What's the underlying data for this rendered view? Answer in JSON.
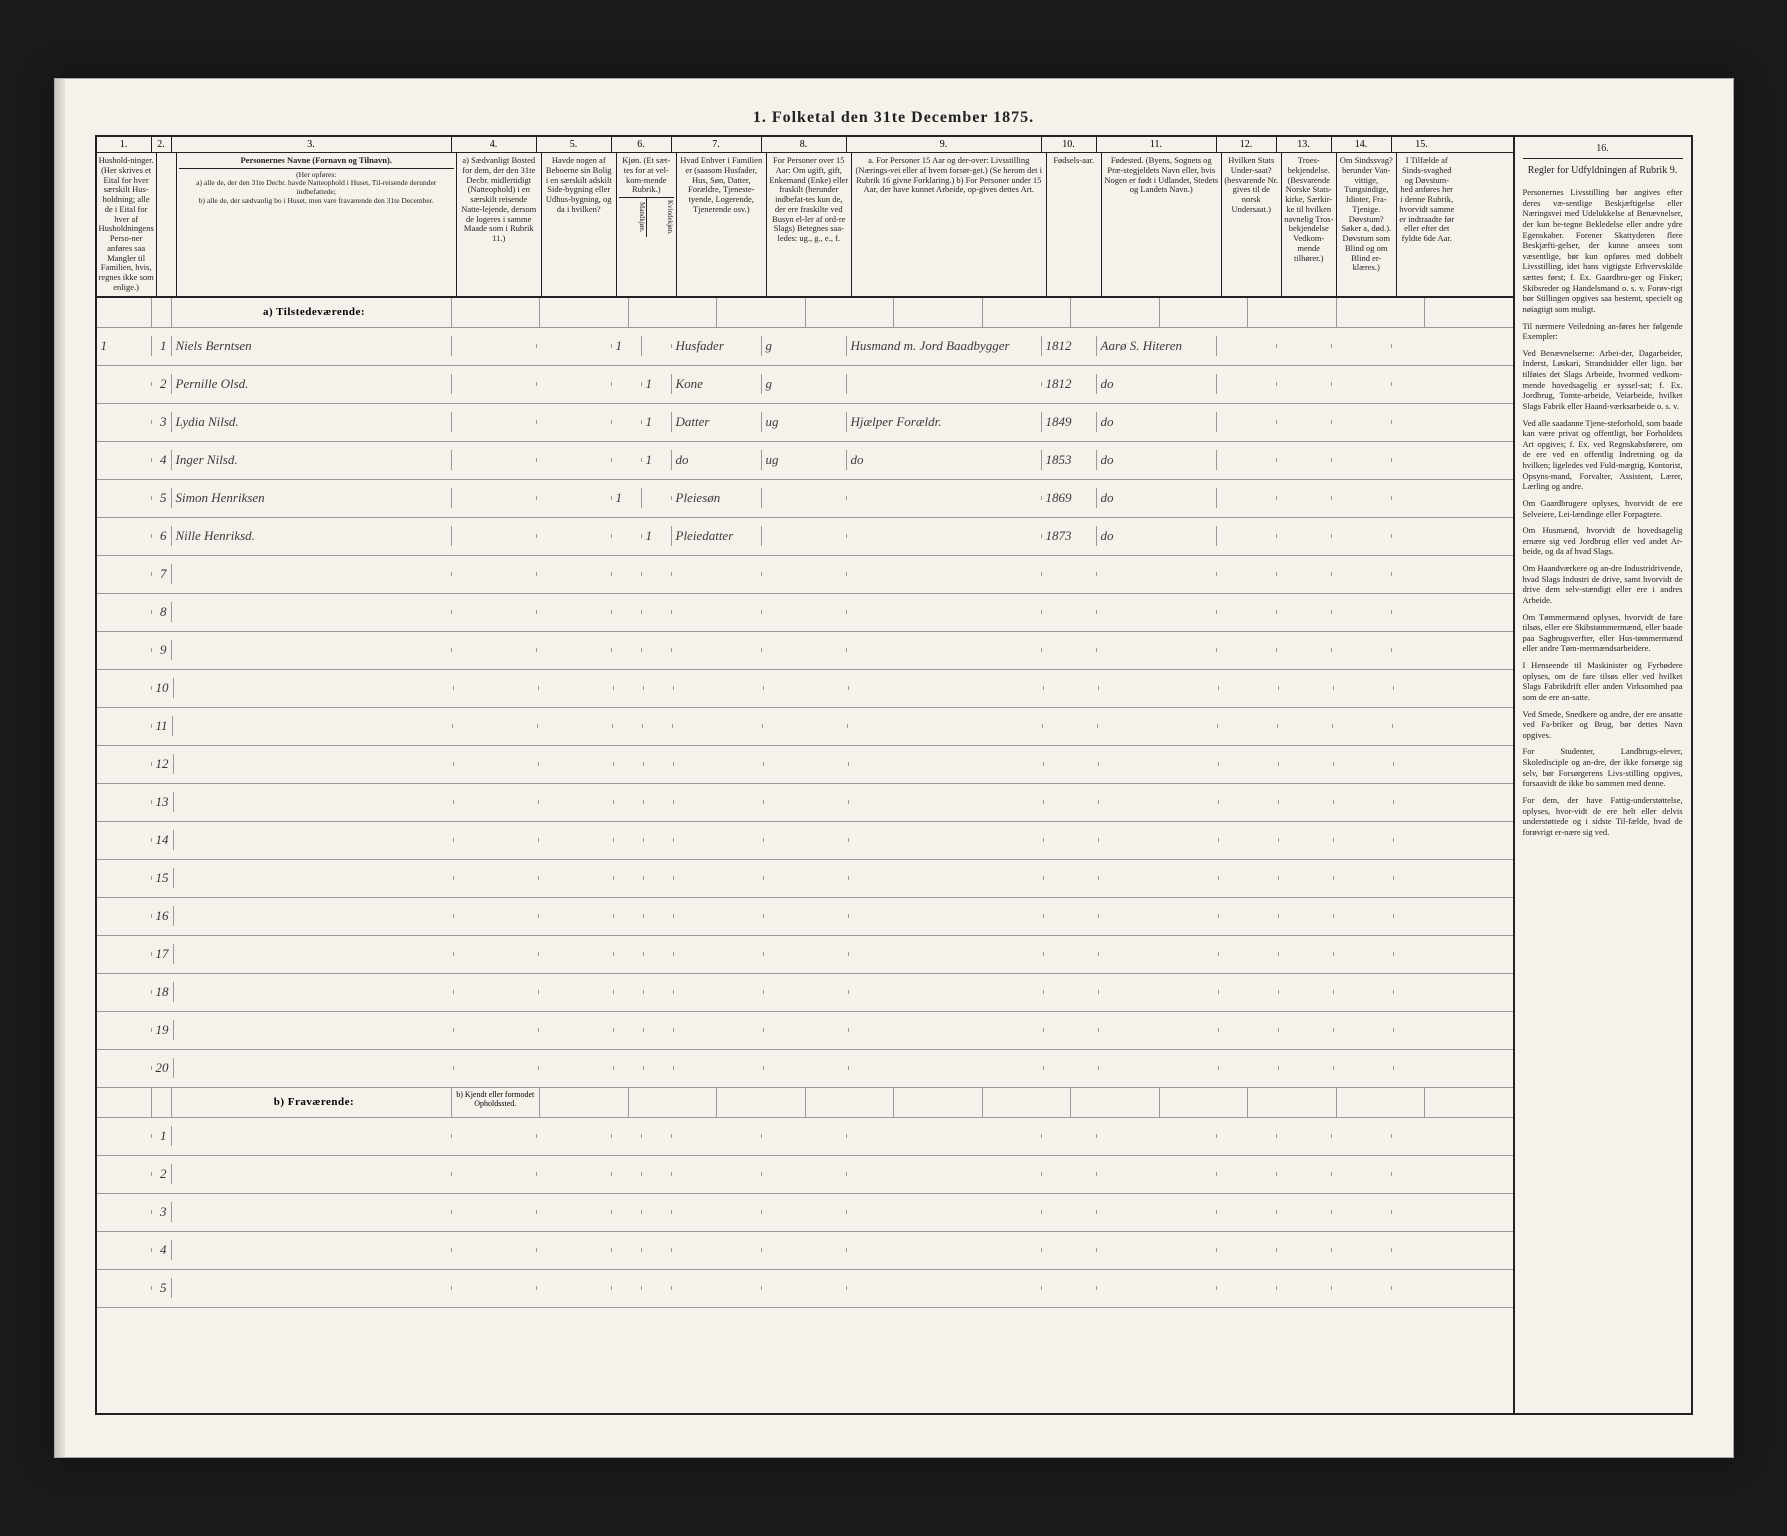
{
  "title": "1. Folketal den 31te December 1875.",
  "columns": {
    "nums": [
      "1.",
      "2.",
      "3.",
      "4.",
      "5.",
      "6.",
      "7.",
      "8.",
      "9.",
      "10.",
      "11.",
      "12.",
      "13.",
      "14.",
      "15.",
      "16."
    ],
    "h1": "Hushold-ninger. (Her skrives et Eital for hver særskilt Hus-holdning; alle de i Eital for hver af Husholdningens Perso-ner anføres saa Mangler til Familien, hvis, regnes ikke som enlige.)",
    "h2": "",
    "h3_title": "Personernes Navne (Fornavn og Tilnavn).",
    "h3_sub": "(Her opføres:\na) alle de, der den 31te Decbr. havde Natteophold i Huset, Til-reisende derunder indbefattede;\nb) alle de, der sædvanlig bo i Huset, men vare fraværende den 31te December.",
    "h4": "a) Sædvanligt Bosted for dem, der den 31te Decbr. midlertidigt (Natteophold) i en særskilt reisende Natte-lejende, dersom de logeres i samme Maade som i Rubrik 11.)",
    "h5": "Havde nogen af Beboerne sin Bolig i en særskilt adskilt Side-bygning eller Udhus-bygning, og da i hvilken?",
    "h6": "Kjøn. (Et sæt-tes for at vel-kom-mende Rubrik.)",
    "h6a": "Mandkjøn.",
    "h6b": "Kvindekjøn.",
    "h7": "Hvad Enhver i Familien er (saasom Husfader, Hus, Søn, Datter, Forældre, Tjeneste-tyende, Logerende, Tjenerende osv.)",
    "h8": "For Personer over 15 Aar: Om ugift, gift, Enkemand (Enke) eller fraskilt (herunder indbefat-tes kun de, der ere fraskilte ved Busyn el-ler af ord-re Slags) Betegnes saa-ledes: ug., g., e., f.",
    "h9": "a. For Personer 15 Aar og der-over: Livsstilling (Nærings-vei eller af hvem forsør-get.) (Se herom det i Rubrik 16 givne Forklaring.) b) For Personer under 15 Aar, der have kunnet Arbeide, op-gives dettes Art.",
    "h10": "Fødsels-aar.",
    "h11": "Fødested. (Byens, Sognets og Præ-stegjeldets Navn eller, hvis Nogen er født i Udlandet, Stedets og Landets Navn.)",
    "h12": "Hvilken Stats Under-saat? (besvarende Nr. gives til de norsk Undersaat.)",
    "h13": "Troes-bekjendelse. (Besvarende Norske Stats-kirke, Særkir-ke til hvilken navnelig Tros-bekjendelse Vedkom-mende tilhører.)",
    "h14": "Om Sindssvag? berunder Van-vittige, Tungsindige, Idioter, Fra-Tjenige. Døvstum? Søker a, død.). Døvstum som Blind og om Blind er-klæres.)",
    "h15": "I Tilfælde af Sinds-svaghed og Døvstum-hed anføres her i denne Rubrik, hvorvidt samme er indtraadte før eller efter det fyldte 6de Aar.",
    "h16_title": "Regler for Udfyldningen af Rubrik 9."
  },
  "section_a": "a) Tilstedeværende:",
  "section_b": "b) Fraværende:",
  "section_b_col4": "b) Kjendt eller formodet Opholdssted.",
  "rows": [
    {
      "n": "1",
      "hh": "1",
      "name": "Niels Berntsen",
      "m": "1",
      "k": "",
      "rel": "Husfader",
      "civ": "g",
      "occ": "Husmand m. Jord Baadbygger",
      "yr": "1812",
      "place": "Aarø S. Hiteren"
    },
    {
      "n": "2",
      "hh": "",
      "name": "Pernille Olsd.",
      "m": "",
      "k": "1",
      "rel": "Kone",
      "civ": "g",
      "occ": "",
      "yr": "1812",
      "place": "do"
    },
    {
      "n": "3",
      "hh": "",
      "name": "Lydia Nilsd.",
      "m": "",
      "k": "1",
      "rel": "Datter",
      "civ": "ug",
      "occ": "Hjælper Forældr.",
      "yr": "1849",
      "place": "do"
    },
    {
      "n": "4",
      "hh": "",
      "name": "Inger Nilsd.",
      "m": "",
      "k": "1",
      "rel": "do",
      "civ": "ug",
      "occ": "do",
      "yr": "1853",
      "place": "do"
    },
    {
      "n": "5",
      "hh": "",
      "name": "Simon Henriksen",
      "m": "1",
      "k": "",
      "rel": "Pleiesøn",
      "civ": "",
      "occ": "",
      "yr": "1869",
      "place": "do"
    },
    {
      "n": "6",
      "hh": "",
      "name": "Nille Henriksd.",
      "m": "",
      "k": "1",
      "rel": "Pleiedatter",
      "civ": "",
      "occ": "",
      "yr": "1873",
      "place": "do"
    }
  ],
  "empty_a": [
    "7",
    "8",
    "9",
    "10",
    "11",
    "12",
    "13",
    "14",
    "15",
    "16",
    "17",
    "18",
    "19",
    "20"
  ],
  "empty_b": [
    "1",
    "2",
    "3",
    "4",
    "5"
  ],
  "rules": {
    "p1": "Personernes Livsstilling bør angives efter deres væ-sentlige Beskjæftigelse eller Næringsvei med Udelukkelse af Benævnelser, der kun be-tegne Bekledelse eller andre ydre Egenskaber. Forener Skattyderen flere Beskjæfti-gelser, der kunne ansees som væsentlige, bør kun opføres med dobbelt Livsstilling, idet hans vigtigste Erhvervskilde sættes først; f. Ex. Gaardbru-ger og Fisker; Skibsreder og Handelsmand o. s. v. Forøv-rigt bør Stillingen opgives saa bestemt, specielt og nøiagtigt som muligt.",
    "p2": "Til nærmere Veiledning an-føres her følgende Exempler:",
    "p3": "Ved Benævnelserne: Arbei-der, Dagarbeider, Inderst, Løskari, Strandsidder eller lign. bør tilføies det Slags Arbeide, hvormed vedkom-mende hovedsagelig er syssel-sat; f. Ex. Jordbrug, Tomte-arbeide, Veiarbeide, hvilket Slags Fabrik eller Haand-værksarbeide o. s. v.",
    "p4": "Ved alle saadanne Tjene-steforhold, som baade kan være privat og offentligt, bør Forholdets Art opgives; f. Ex. ved Regnskabsførere, om de ere ved en offentlig Indretning og da hvilken; ligeledes ved Fuld-mægtig, Kontorist, Opsyns-mand, Forvalter, Assistent, Lærer, Lærling og andre.",
    "p5": "Om Gaardbrugere oplyses, hvorvidt de ere Selveiere, Lei-lændinge eller Forpagtere.",
    "p6": "Om Husmænd, hvorvidt de hovedsagelig ernære sig ved Jordbrug eller ved andet Ar-beide, og da af hvad Slags.",
    "p7": "Om Haandværkere og an-dre Industridrivende, hvad Slags Industri de drive, samt hvorvidt de drive dem selv-stændigt eller ere i andres Arbeide.",
    "p8": "Om Tømmermænd oplyses, hvorvidt de fare tilsøs, eller ere Skibstømmermænd, eller baade paa Sagbrugsverfter, eller Hus-tømmermænd eller andre Tøm-mermændsarbeidere.",
    "p9": "I Henseende til Maskinister og Fyrbødere oplyses, om de fare tilsøs eller ved hvilket Slags Fabrikdrift eller anden Virksomhed paa som de ere an-satte.",
    "p10": "Ved Smede, Snedkere og andre, der ere ansatte ved Fa-briker og Brug, bør dettes Navn opgives.",
    "p11": "For Studenter, Landbrugs-elever, Skoledisciple og an-dre, der ikke forsørge sig selv, bør Forsørgerens Livs-stilling opgives, forsaavidt de ikke bo sammen med denne.",
    "p12": "For dem, der have Fattig-understøttelse, oplyses, hvor-vidt de ere helt eller delvis understøttede og i sidste Til-fælde, hvad de forøvrigt er-nære sig ved."
  },
  "colors": {
    "paper": "#f4f2ea",
    "ink": "#222222",
    "rule": "#999999",
    "hand": "#3b3b3b",
    "background": "#1a1a1a"
  }
}
